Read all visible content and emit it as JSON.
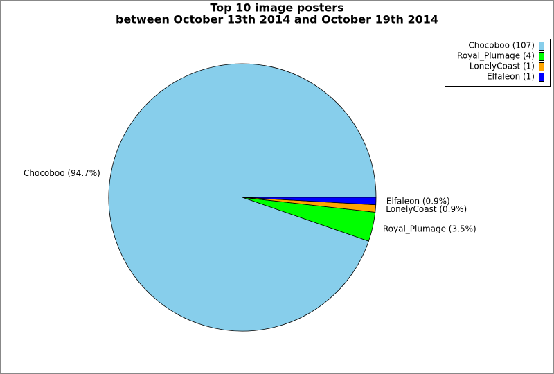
{
  "chart_data": {
    "type": "pie",
    "title": "Top 10 image posters",
    "subtitle": "between October 13th 2014 and October 19th 2014",
    "values": [
      107,
      4,
      1,
      1
    ],
    "value_labels": [
      "Chocoboo (107)",
      "Royal_Plumage (4)",
      "LonelyCoast (1)",
      "Elfaleon (1)"
    ],
    "percents": [
      94.7,
      3.5,
      0.9,
      0.9
    ],
    "percent_labels": [
      "Chocoboo (94.7%)",
      "Royal_Plumage (3.5%)",
      "LonelyCoast (0.9%)",
      "Elfaleon (0.9%)"
    ],
    "colors": [
      "#87ceeb",
      "#00ff00",
      "#ffa500",
      "#0000ff"
    ],
    "legend": "top-right"
  }
}
